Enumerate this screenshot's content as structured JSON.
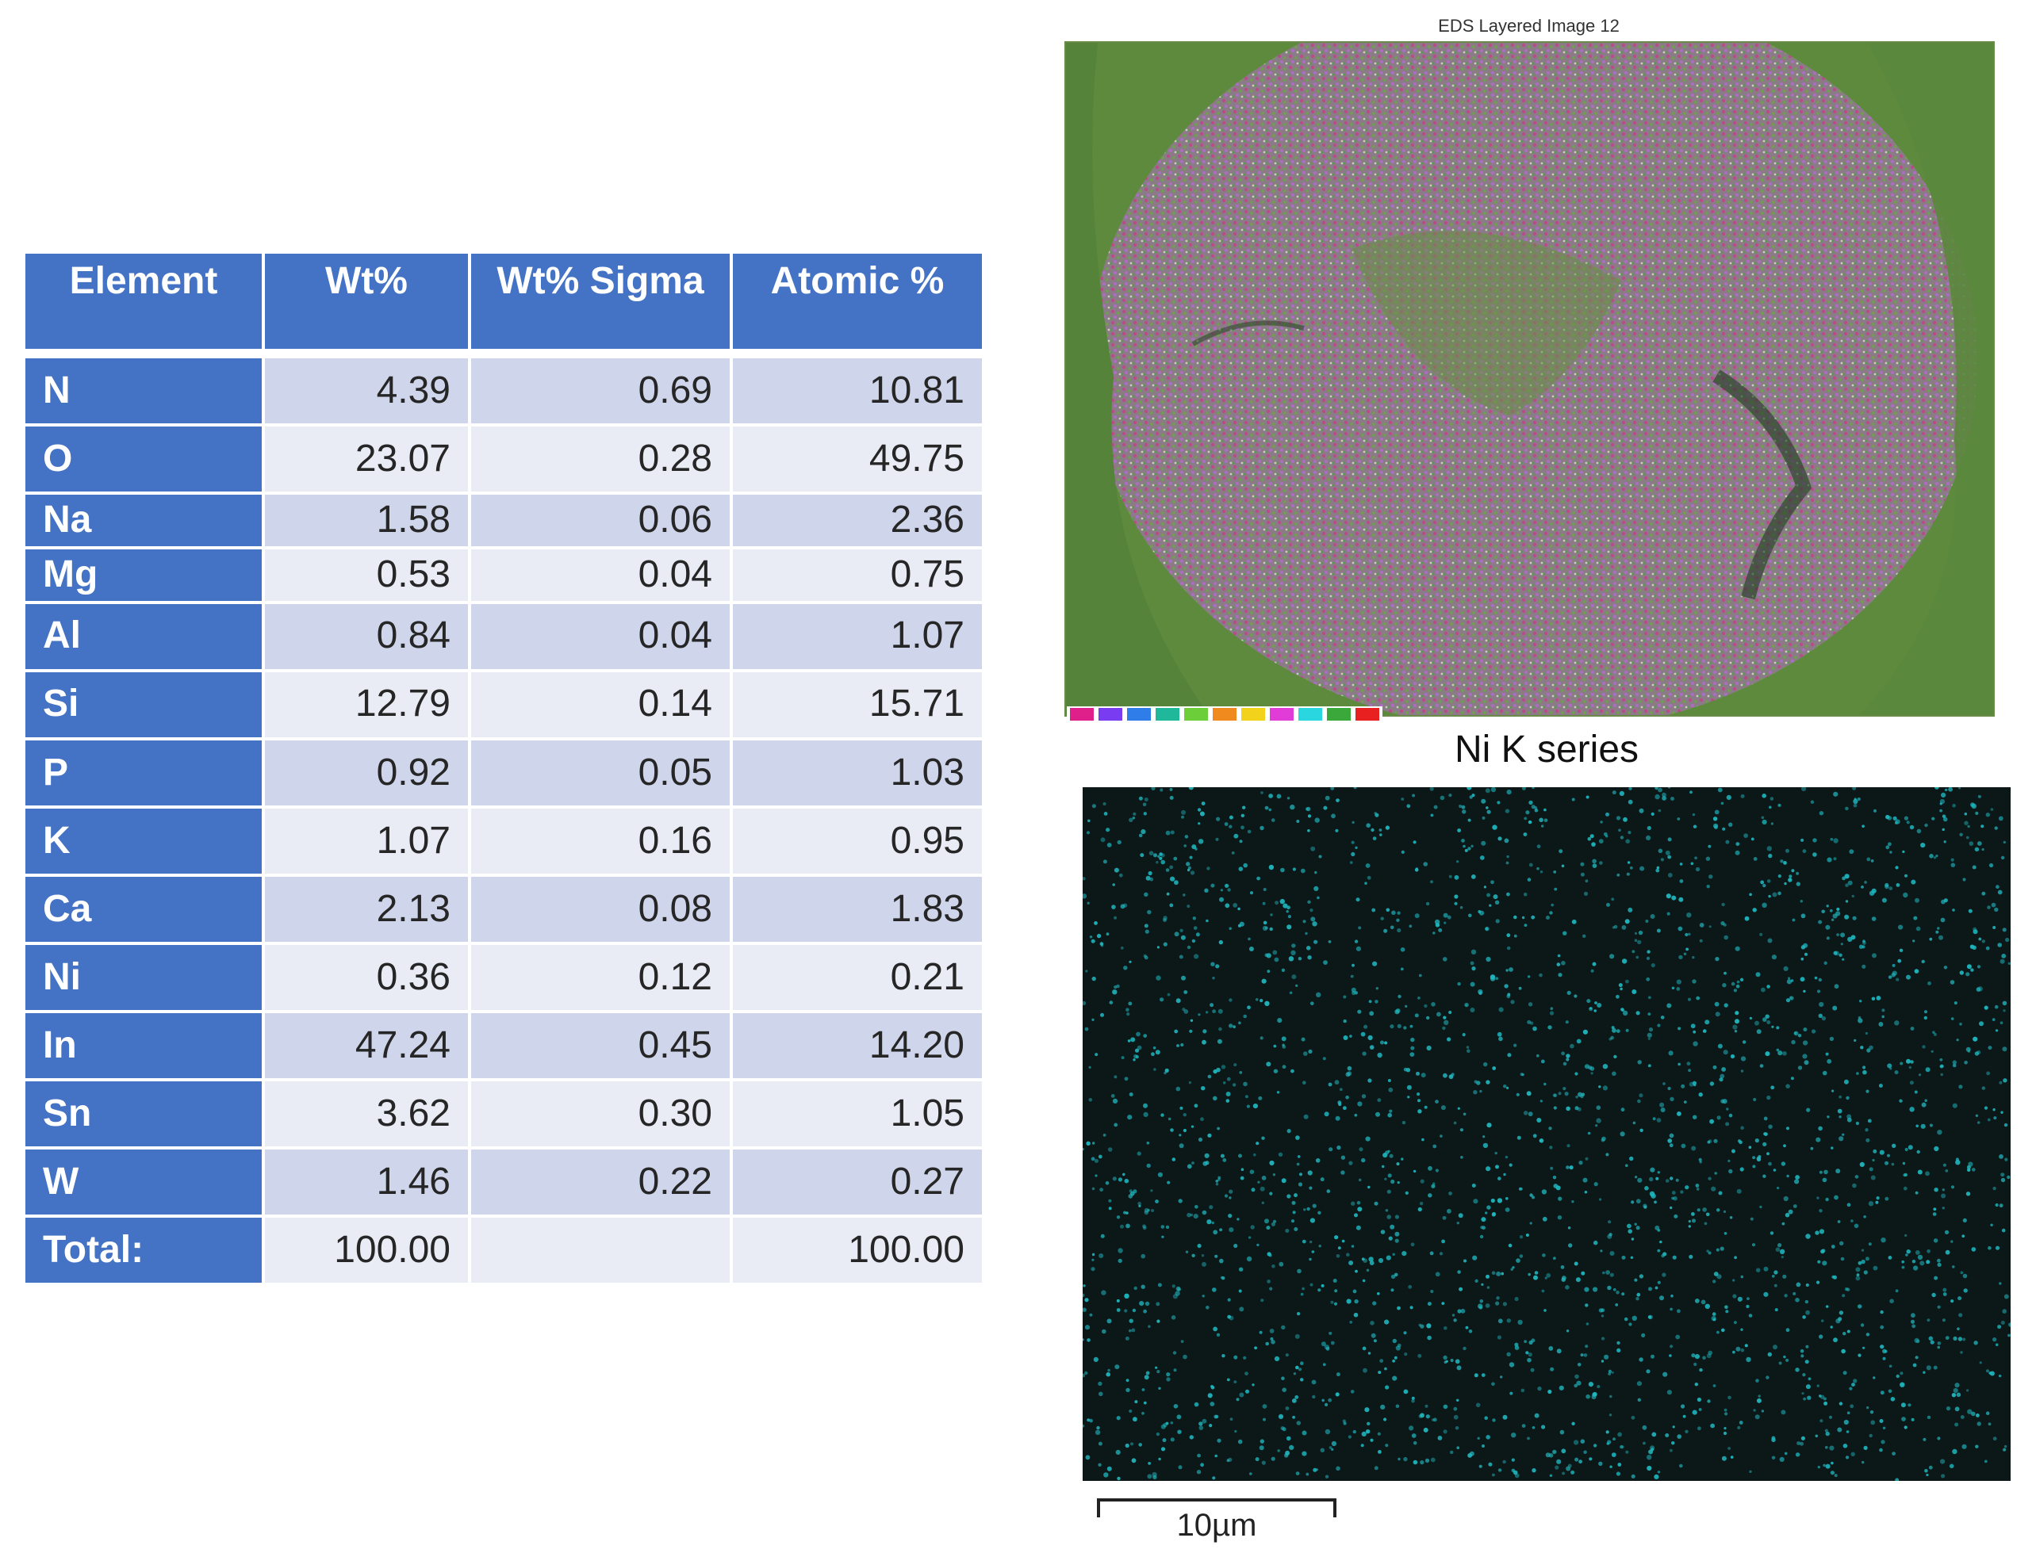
{
  "table": {
    "headers": [
      "Element",
      "Wt%",
      "Wt% Sigma",
      "Atomic %"
    ],
    "rows": [
      {
        "element": "N",
        "wt": "4.39",
        "sigma": "0.69",
        "atomic": "10.81"
      },
      {
        "element": "O",
        "wt": "23.07",
        "sigma": "0.28",
        "atomic": "49.75"
      },
      {
        "element": "Na",
        "wt": "1.58",
        "sigma": "0.06",
        "atomic": "2.36"
      },
      {
        "element": "Mg",
        "wt": "0.53",
        "sigma": "0.04",
        "atomic": "0.75"
      },
      {
        "element": "Al",
        "wt": "0.84",
        "sigma": "0.04",
        "atomic": "1.07"
      },
      {
        "element": "Si",
        "wt": "12.79",
        "sigma": "0.14",
        "atomic": "15.71"
      },
      {
        "element": "P",
        "wt": "0.92",
        "sigma": "0.05",
        "atomic": "1.03"
      },
      {
        "element": "K",
        "wt": "1.07",
        "sigma": "0.16",
        "atomic": "0.95"
      },
      {
        "element": "Ca",
        "wt": "2.13",
        "sigma": "0.08",
        "atomic": "1.83"
      },
      {
        "element": "Ni",
        "wt": "0.36",
        "sigma": "0.12",
        "atomic": "0.21"
      },
      {
        "element": "In",
        "wt": "47.24",
        "sigma": "0.45",
        "atomic": "14.20"
      },
      {
        "element": "Sn",
        "wt": "3.62",
        "sigma": "0.30",
        "atomic": "1.05"
      },
      {
        "element": "W",
        "wt": "1.46",
        "sigma": "0.22",
        "atomic": "0.27"
      }
    ],
    "total": {
      "element": "Total:",
      "wt": "100.00",
      "sigma": "",
      "atomic": "100.00"
    }
  },
  "eds_image": {
    "title": "EDS Layered Image 12",
    "element_colors": [
      "#e0208a",
      "#7a3cf0",
      "#2f7de8",
      "#1fb89a",
      "#6ccf3a",
      "#f08a1e",
      "#f2d21a",
      "#e23cd8",
      "#2ad6e0",
      "#3aa83a",
      "#e82020"
    ]
  },
  "ni_map": {
    "title": "Ni K series",
    "dot_color": "#1fb8c0",
    "background_color": "#0c1718"
  },
  "scale_bar": {
    "label": "10µm"
  },
  "colors": {
    "header_blue": "#4472c4",
    "row_band_dark": "#cfd5ea",
    "row_band_light": "#e9ebf5"
  }
}
